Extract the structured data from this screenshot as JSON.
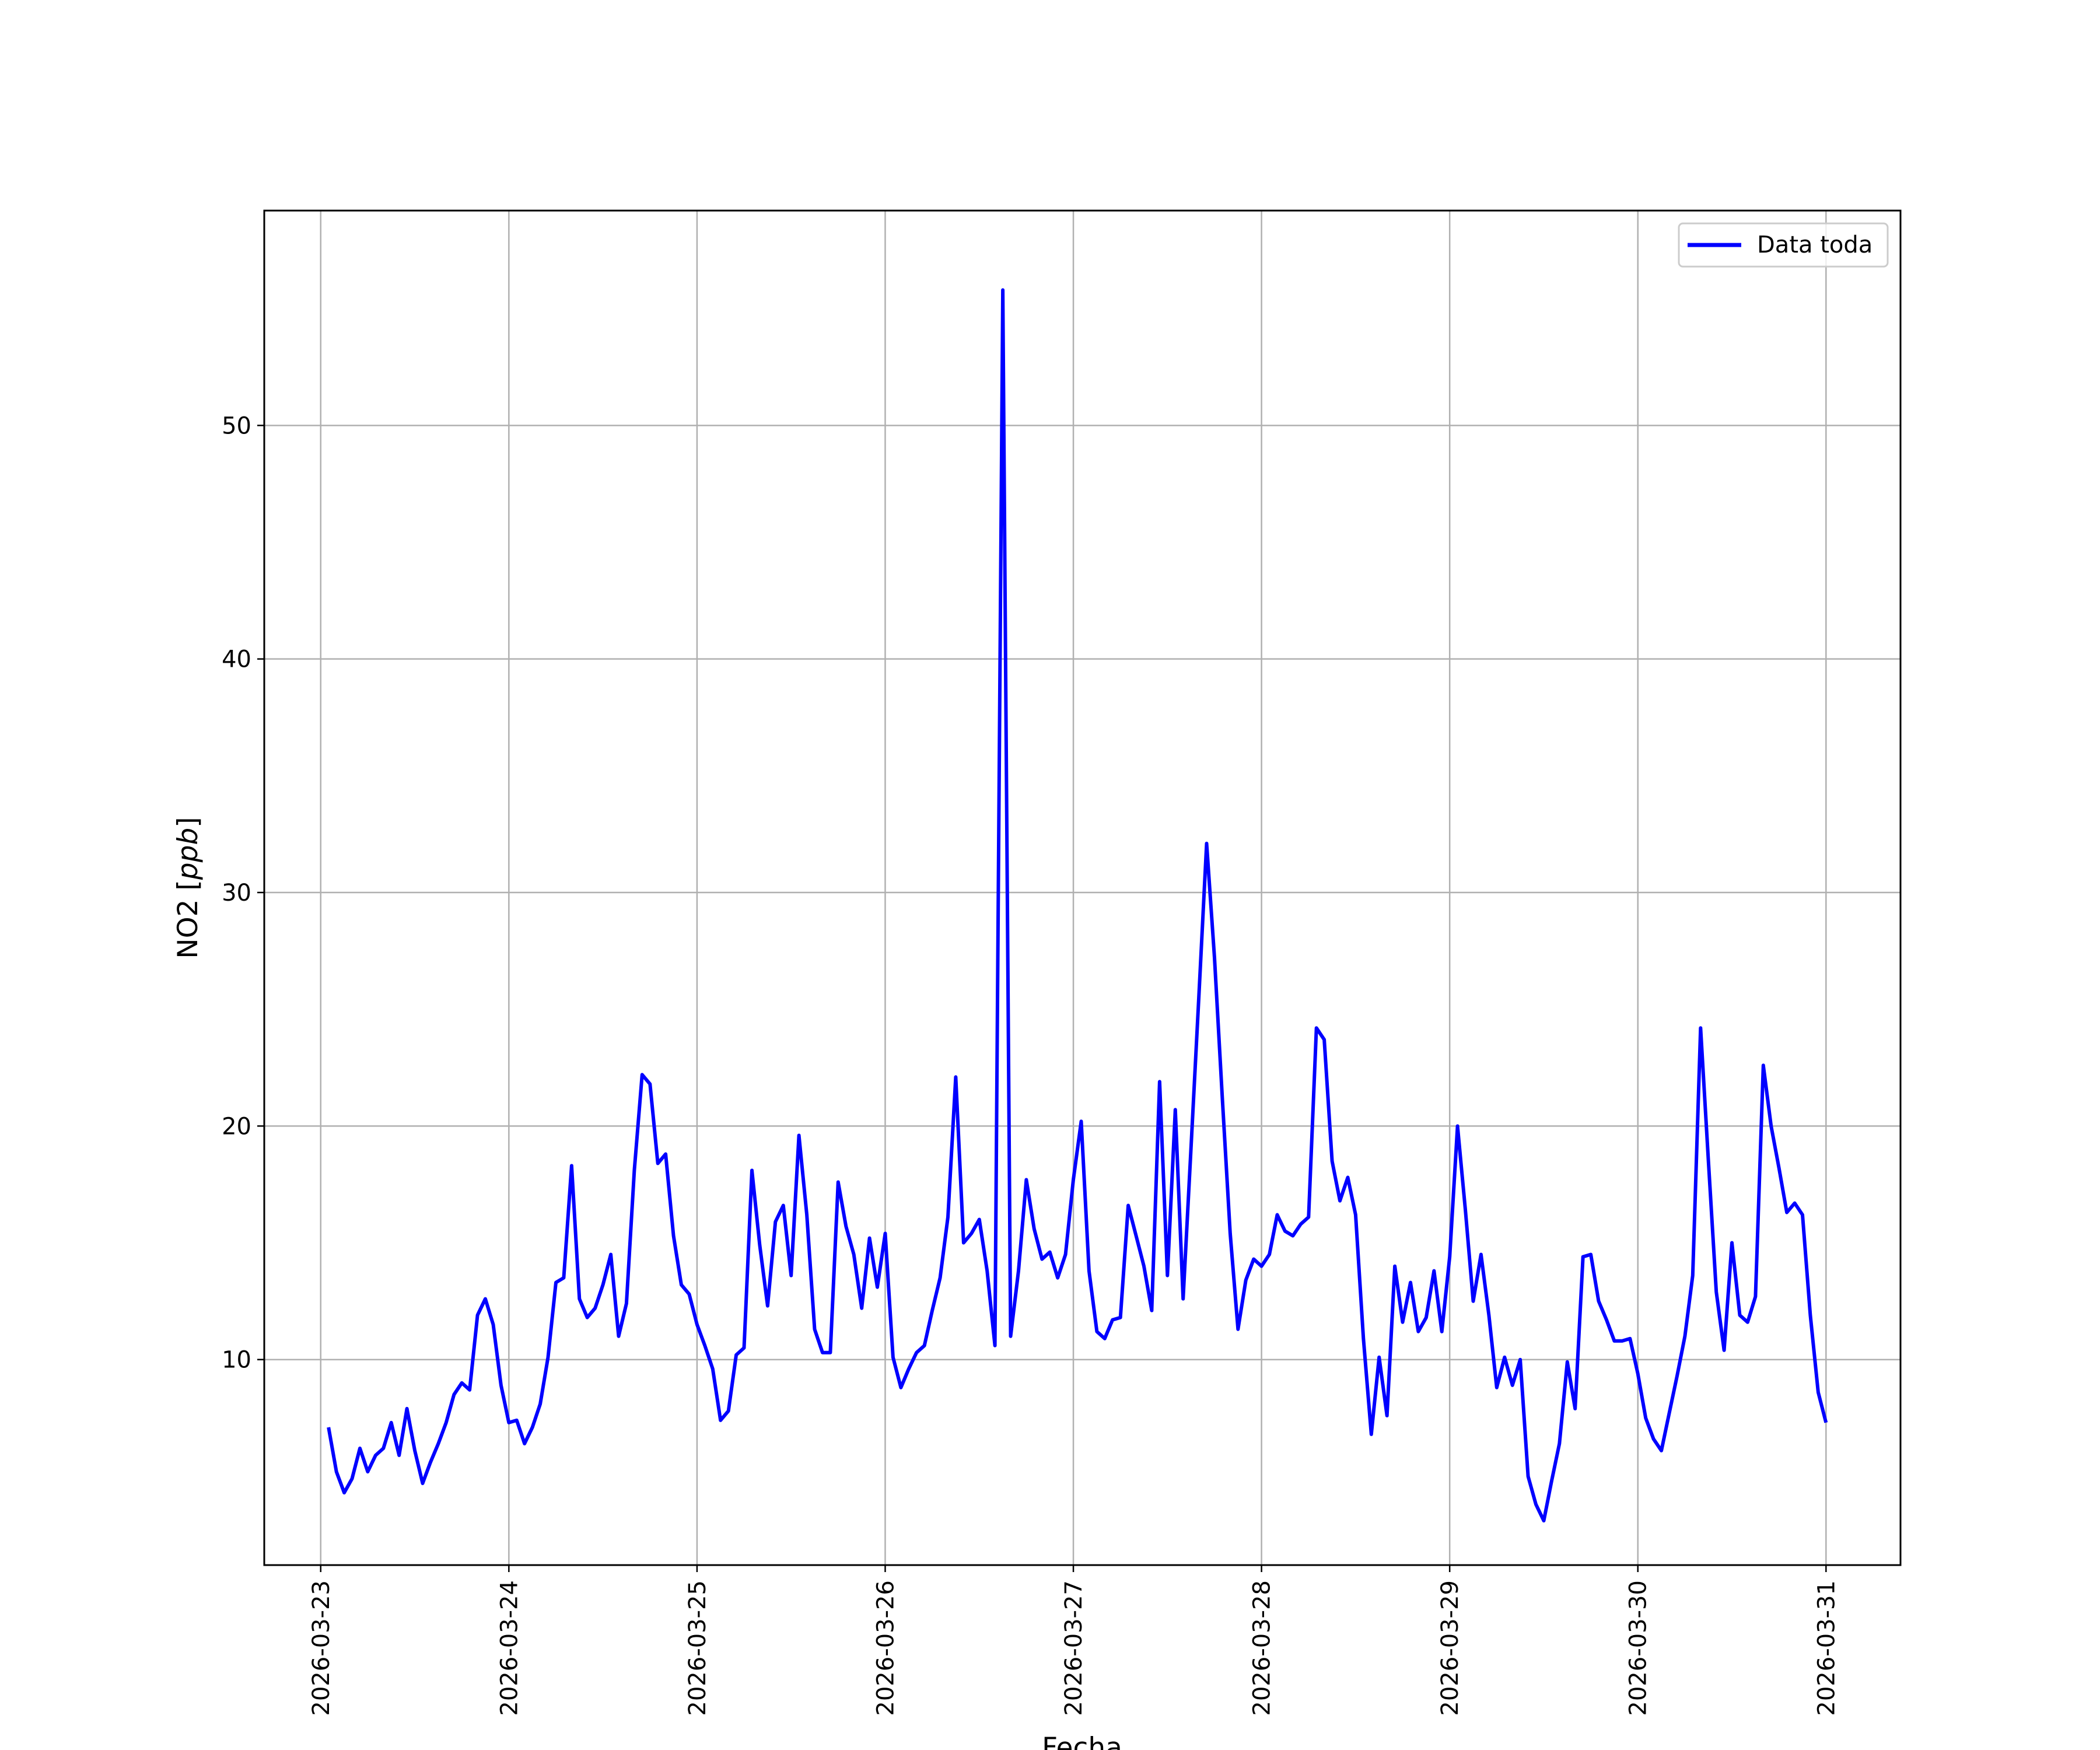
{
  "chart_data": {
    "type": "line",
    "title": "",
    "xlabel": "Fecha",
    "ylabel": "NO2 [ppb]",
    "ylabel_prefix": "NO2 [",
    "ylabel_unit": "ppb",
    "ylabel_suffix": "]",
    "x_tick_labels": [
      "2026-03-23",
      "2026-03-24",
      "2026-03-25",
      "2026-03-26",
      "2026-03-27",
      "2026-03-28",
      "2026-03-29",
      "2026-03-30",
      "2026-03-31"
    ],
    "y_tick_labels": [
      "10",
      "20",
      "30",
      "40",
      "50"
    ],
    "y_ticks": [
      10,
      20,
      30,
      40,
      50
    ],
    "xlim": [
      "2026-03-22T16:48",
      "2026-03-31T09:30"
    ],
    "ylim": [
      1.2,
      59.2
    ],
    "grid": true,
    "legend_position": "upper right",
    "series": [
      {
        "name": "Data toda",
        "color": "#0000ff",
        "x": [
          "2026-03-23T01:00",
          "2026-03-23T02:00",
          "2026-03-23T03:00",
          "2026-03-23T04:00",
          "2026-03-23T05:00",
          "2026-03-23T06:00",
          "2026-03-23T07:00",
          "2026-03-23T08:00",
          "2026-03-23T09:00",
          "2026-03-23T10:00",
          "2026-03-23T11:00",
          "2026-03-23T12:00",
          "2026-03-23T13:00",
          "2026-03-23T14:00",
          "2026-03-23T15:00",
          "2026-03-23T16:00",
          "2026-03-23T17:00",
          "2026-03-23T18:00",
          "2026-03-23T19:00",
          "2026-03-23T20:00",
          "2026-03-23T21:00",
          "2026-03-23T22:00",
          "2026-03-23T23:00",
          "2026-03-24T00:00",
          "2026-03-24T01:00",
          "2026-03-24T02:00",
          "2026-03-24T03:00",
          "2026-03-24T04:00",
          "2026-03-24T05:00",
          "2026-03-24T06:00",
          "2026-03-24T07:00",
          "2026-03-24T08:00",
          "2026-03-24T09:00",
          "2026-03-24T10:00",
          "2026-03-24T11:00",
          "2026-03-24T12:00",
          "2026-03-24T13:00",
          "2026-03-24T14:00",
          "2026-03-24T15:00",
          "2026-03-24T16:00",
          "2026-03-24T17:00",
          "2026-03-24T18:00",
          "2026-03-24T19:00",
          "2026-03-24T20:00",
          "2026-03-24T21:00",
          "2026-03-24T22:00",
          "2026-03-24T23:00",
          "2026-03-25T00:00",
          "2026-03-25T01:00",
          "2026-03-25T02:00",
          "2026-03-25T03:00",
          "2026-03-25T04:00",
          "2026-03-25T05:00",
          "2026-03-25T06:00",
          "2026-03-25T07:00",
          "2026-03-25T08:00",
          "2026-03-25T09:00",
          "2026-03-25T10:00",
          "2026-03-25T11:00",
          "2026-03-25T12:00",
          "2026-03-25T13:00",
          "2026-03-25T14:00",
          "2026-03-25T15:00",
          "2026-03-25T16:00",
          "2026-03-25T17:00",
          "2026-03-25T18:00",
          "2026-03-25T19:00",
          "2026-03-25T20:00",
          "2026-03-25T21:00",
          "2026-03-25T22:00",
          "2026-03-25T23:00",
          "2026-03-26T00:00",
          "2026-03-26T01:00",
          "2026-03-26T02:00",
          "2026-03-26T03:00",
          "2026-03-26T04:00",
          "2026-03-26T05:00",
          "2026-03-26T06:00",
          "2026-03-26T07:00",
          "2026-03-26T08:00",
          "2026-03-26T09:00",
          "2026-03-26T10:00",
          "2026-03-26T11:00",
          "2026-03-26T12:00",
          "2026-03-26T13:00",
          "2026-03-26T14:00",
          "2026-03-26T15:00",
          "2026-03-26T16:00",
          "2026-03-26T17:00",
          "2026-03-26T18:00",
          "2026-03-26T19:00",
          "2026-03-26T20:00",
          "2026-03-26T21:00",
          "2026-03-26T22:00",
          "2026-03-26T23:00",
          "2026-03-27T00:00",
          "2026-03-27T01:00",
          "2026-03-27T02:00",
          "2026-03-27T03:00",
          "2026-03-27T04:00",
          "2026-03-27T05:00",
          "2026-03-27T06:00",
          "2026-03-27T07:00",
          "2026-03-27T08:00",
          "2026-03-27T09:00",
          "2026-03-27T10:00",
          "2026-03-27T11:00",
          "2026-03-27T12:00",
          "2026-03-27T13:00",
          "2026-03-27T14:00",
          "2026-03-27T15:00",
          "2026-03-27T16:00",
          "2026-03-27T17:00",
          "2026-03-27T18:00",
          "2026-03-27T19:00",
          "2026-03-27T20:00",
          "2026-03-27T21:00",
          "2026-03-27T22:00",
          "2026-03-27T23:00",
          "2026-03-28T00:00",
          "2026-03-28T01:00",
          "2026-03-28T02:00",
          "2026-03-28T03:00",
          "2026-03-28T04:00",
          "2026-03-28T05:00",
          "2026-03-28T06:00",
          "2026-03-28T07:00",
          "2026-03-28T08:00",
          "2026-03-28T09:00",
          "2026-03-28T10:00",
          "2026-03-28T11:00",
          "2026-03-28T12:00",
          "2026-03-28T13:00",
          "2026-03-28T14:00",
          "2026-03-28T15:00",
          "2026-03-28T16:00",
          "2026-03-28T17:00",
          "2026-03-28T18:00",
          "2026-03-28T19:00",
          "2026-03-28T20:00",
          "2026-03-28T21:00",
          "2026-03-28T22:00",
          "2026-03-28T23:00",
          "2026-03-29T00:00",
          "2026-03-29T01:00",
          "2026-03-29T02:00",
          "2026-03-29T03:00",
          "2026-03-29T04:00",
          "2026-03-29T05:00",
          "2026-03-29T06:00",
          "2026-03-29T07:00",
          "2026-03-29T08:00",
          "2026-03-29T09:00",
          "2026-03-29T10:00",
          "2026-03-29T11:00",
          "2026-03-29T12:00",
          "2026-03-29T13:00",
          "2026-03-29T14:00",
          "2026-03-29T15:00",
          "2026-03-29T16:00",
          "2026-03-29T17:00",
          "2026-03-29T18:00",
          "2026-03-29T19:00",
          "2026-03-29T20:00",
          "2026-03-29T21:00",
          "2026-03-29T22:00",
          "2026-03-29T23:00",
          "2026-03-30T00:00",
          "2026-03-30T01:00",
          "2026-03-30T02:00",
          "2026-03-30T03:00",
          "2026-03-30T04:00",
          "2026-03-30T05:00",
          "2026-03-30T06:00",
          "2026-03-30T07:00",
          "2026-03-30T08:00",
          "2026-03-30T09:00",
          "2026-03-30T10:00",
          "2026-03-30T11:00",
          "2026-03-30T12:00",
          "2026-03-30T13:00",
          "2026-03-30T14:00",
          "2026-03-30T15:00",
          "2026-03-30T16:00",
          "2026-03-30T17:00",
          "2026-03-30T18:00",
          "2026-03-30T19:00",
          "2026-03-30T20:00",
          "2026-03-30T21:00",
          "2026-03-30T22:00",
          "2026-03-30T23:00",
          "2026-03-31T00:00"
        ],
        "y": [
          7.1,
          5.2,
          4.3,
          4.9,
          6.2,
          5.2,
          5.9,
          6.2,
          7.3,
          5.9,
          7.9,
          6.1,
          4.7,
          5.6,
          6.4,
          7.3,
          8.5,
          9.0,
          8.7,
          11.9,
          12.6,
          11.5,
          8.9,
          7.3,
          7.4,
          6.4,
          7.1,
          8.1,
          10.1,
          13.3,
          13.5,
          18.3,
          12.6,
          11.8,
          12.2,
          13.2,
          14.5,
          11.0,
          12.4,
          18.1,
          22.2,
          21.8,
          18.4,
          18.8,
          15.3,
          13.2,
          12.8,
          11.5,
          10.6,
          9.6,
          7.4,
          7.8,
          10.2,
          10.5,
          18.1,
          14.9,
          12.3,
          15.9,
          16.6,
          13.6,
          19.6,
          16.2,
          11.3,
          10.3,
          10.3,
          17.6,
          15.7,
          14.5,
          12.2,
          15.2,
          13.1,
          15.4,
          10.1,
          8.8,
          9.6,
          10.3,
          10.6,
          12.1,
          13.5,
          16.1,
          22.1,
          15.0,
          15.4,
          16.0,
          13.8,
          10.6,
          55.8,
          11.0,
          13.8,
          17.7,
          15.6,
          14.3,
          14.6,
          13.5,
          14.5,
          17.7,
          20.2,
          13.8,
          11.2,
          10.9,
          11.7,
          11.8,
          16.6,
          15.3,
          14.0,
          12.1,
          21.9,
          13.6,
          20.7,
          12.6,
          19.0,
          25.5,
          32.1,
          27.2,
          21.2,
          15.4,
          11.3,
          13.4,
          14.3,
          14.0,
          14.5,
          16.2,
          15.5,
          15.3,
          15.8,
          16.1,
          24.2,
          23.7,
          18.5,
          16.8,
          17.8,
          16.2,
          10.9,
          6.8,
          10.1,
          7.6,
          14.0,
          11.6,
          13.3,
          11.2,
          11.8,
          13.8,
          11.2,
          14.4,
          20.0,
          16.4,
          12.5,
          14.5,
          11.9,
          8.8,
          10.1,
          8.9,
          10.0,
          5.0,
          3.8,
          3.1,
          4.8,
          6.4,
          9.9,
          7.9,
          14.4,
          14.5,
          12.5,
          11.7,
          10.8,
          10.8,
          10.9,
          9.4,
          7.5,
          6.6,
          6.1,
          7.7,
          9.3,
          11.0,
          13.6,
          24.2,
          18.5,
          12.9,
          10.4,
          15.0,
          11.9,
          11.6,
          12.7,
          22.6,
          20.0,
          18.2,
          16.3,
          16.7,
          16.2,
          11.9,
          8.6,
          7.3
        ]
      }
    ]
  }
}
